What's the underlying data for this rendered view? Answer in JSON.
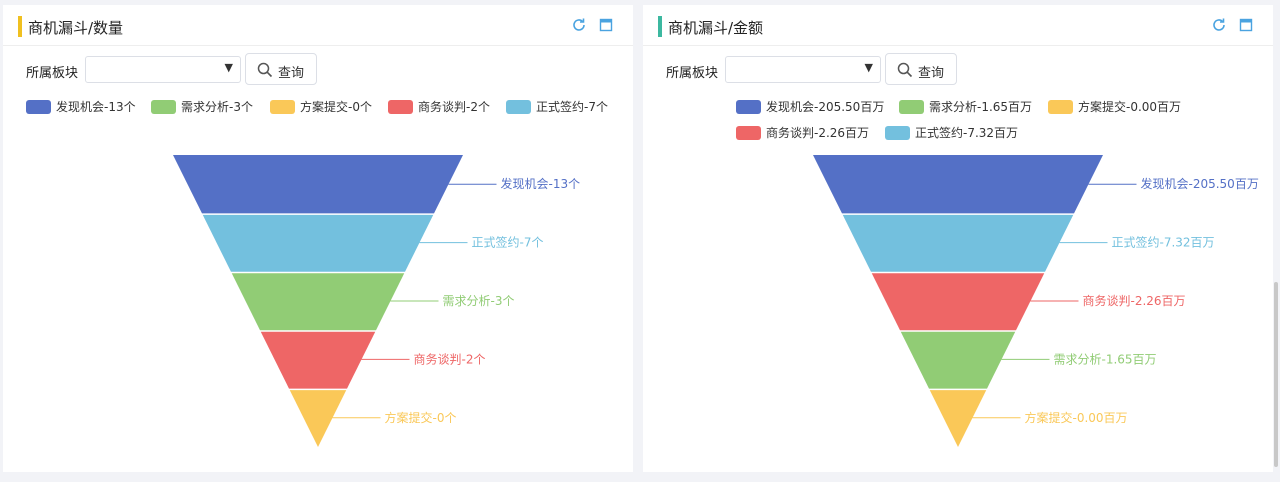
{
  "panels": [
    {
      "title": "商机漏斗/数量",
      "accent_color": "#f0c020",
      "filter_label": "所属板块",
      "filter_value": "",
      "query_label": "查询",
      "icons": [
        "refresh-icon",
        "maximize-icon"
      ],
      "legend": [
        "发现机会-13个",
        "需求分析-3个",
        "方案提交-0个",
        "商务谈判-2个",
        "正式签约-7个"
      ],
      "chart_data": {
        "type": "funnel",
        "sort": "descending",
        "categories": [
          "发现机会",
          "需求分析",
          "方案提交",
          "商务谈判",
          "正式签约"
        ],
        "values": [
          13,
          3,
          0,
          2,
          7
        ],
        "unit": "个",
        "labels": [
          "发现机会-13个",
          "需求分析-3个",
          "方案提交-0个",
          "商务谈判-2个",
          "正式签约-7个"
        ],
        "colors": [
          "#5470c6",
          "#91cc75",
          "#fac858",
          "#ee6666",
          "#73c0de"
        ]
      }
    },
    {
      "title": "商机漏斗/金额",
      "accent_color": "#3cb8a0",
      "filter_label": "所属板块",
      "filter_value": "",
      "query_label": "查询",
      "icons": [
        "refresh-icon",
        "maximize-icon"
      ],
      "legend": [
        "发现机会-205.50百万",
        "需求分析-1.65百万",
        "方案提交-0.00百万",
        "商务谈判-2.26百万",
        "正式签约-7.32百万"
      ],
      "chart_data": {
        "type": "funnel",
        "sort": "descending",
        "categories": [
          "发现机会",
          "需求分析",
          "方案提交",
          "商务谈判",
          "正式签约"
        ],
        "values": [
          205.5,
          1.65,
          0.0,
          2.26,
          7.32
        ],
        "unit": "百万",
        "labels": [
          "发现机会-205.50百万",
          "需求分析-1.65百万",
          "方案提交-0.00百万",
          "商务谈判-2.26百万",
          "正式签约-7.32百万"
        ],
        "colors": [
          "#5470c6",
          "#91cc75",
          "#fac858",
          "#ee6666",
          "#73c0de"
        ]
      }
    }
  ]
}
